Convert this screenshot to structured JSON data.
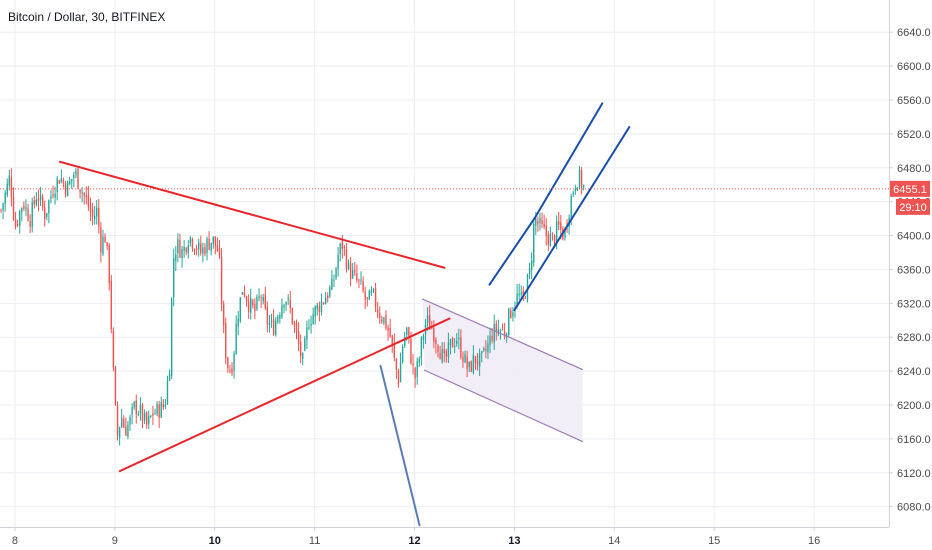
{
  "chart_data": {
    "type": "candlestick",
    "title": "Bitcoin / Dollar, 30, BITFINEX",
    "xlim": [
      7.85,
      16.75
    ],
    "ylim": [
      6056,
      6678
    ],
    "x_ticks": [
      {
        "value": 8,
        "label": "8",
        "bold": false
      },
      {
        "value": 9,
        "label": "9",
        "bold": false
      },
      {
        "value": 10,
        "label": "10",
        "bold": true
      },
      {
        "value": 11,
        "label": "11",
        "bold": false
      },
      {
        "value": 12,
        "label": "12",
        "bold": true
      },
      {
        "value": 13,
        "label": "13",
        "bold": true
      },
      {
        "value": 14,
        "label": "14",
        "bold": false
      },
      {
        "value": 15,
        "label": "15",
        "bold": false
      },
      {
        "value": 16,
        "label": "16",
        "bold": false
      }
    ],
    "y_ticks": [
      {
        "value": 6080,
        "label": "6080.0"
      },
      {
        "value": 6120,
        "label": "6120.0"
      },
      {
        "value": 6160,
        "label": "6160.0"
      },
      {
        "value": 6200,
        "label": "6200.0"
      },
      {
        "value": 6240,
        "label": "6240.0"
      },
      {
        "value": 6280,
        "label": "6280.0"
      },
      {
        "value": 6320,
        "label": "6320.0"
      },
      {
        "value": 6360,
        "label": "6360.0"
      },
      {
        "value": 6400,
        "label": "6400.0"
      },
      {
        "value": 6440,
        "label": "6440.0"
      },
      {
        "value": 6480,
        "label": "6480.0"
      },
      {
        "value": 6520,
        "label": "6520.0"
      },
      {
        "value": 6560,
        "label": "6560.0"
      },
      {
        "value": 6600,
        "label": "6600.0"
      },
      {
        "value": 6640,
        "label": "6640.0"
      }
    ],
    "grid": true,
    "colors": {
      "up": "#26a69a",
      "down": "#ef5350",
      "grid": "#eceef2",
      "axis": "#cfd2d6",
      "price_label_bg": "#ef5350",
      "price_line": "#ef5350",
      "triangle": "#e8252b",
      "channel": "#1a4fa8",
      "falling_channel": "#9c7cb5",
      "falling_channel_fill": "#f0ebf6",
      "steep_line": "#5a7bb5"
    },
    "last_price": 6455.1,
    "last_price_label": "6455.1",
    "countdown_label": "29:10",
    "price_path": [
      [
        7.86,
        6430
      ],
      [
        7.95,
        6470
      ],
      [
        8.0,
        6410
      ],
      [
        8.08,
        6440
      ],
      [
        8.15,
        6420
      ],
      [
        8.22,
        6450
      ],
      [
        8.3,
        6425
      ],
      [
        8.38,
        6455
      ],
      [
        8.45,
        6470
      ],
      [
        8.52,
        6455
      ],
      [
        8.6,
        6475
      ],
      [
        8.66,
        6455
      ],
      [
        8.72,
        6440
      ],
      [
        8.78,
        6420
      ],
      [
        8.82,
        6430
      ],
      [
        8.86,
        6390
      ],
      [
        8.9,
        6400
      ],
      [
        8.94,
        6360
      ],
      [
        8.98,
        6250
      ],
      [
        9.0,
        6200
      ],
      [
        9.03,
        6160
      ],
      [
        9.06,
        6190
      ],
      [
        9.1,
        6170
      ],
      [
        9.15,
        6180
      ],
      [
        9.2,
        6200
      ],
      [
        9.26,
        6190
      ],
      [
        9.32,
        6175
      ],
      [
        9.38,
        6190
      ],
      [
        9.45,
        6195
      ],
      [
        9.5,
        6200
      ],
      [
        9.55,
        6250
      ],
      [
        9.58,
        6370
      ],
      [
        9.62,
        6390
      ],
      [
        9.68,
        6380
      ],
      [
        9.74,
        6400
      ],
      [
        9.8,
        6390
      ],
      [
        9.86,
        6380
      ],
      [
        9.92,
        6390
      ],
      [
        9.98,
        6395
      ],
      [
        10.04,
        6380
      ],
      [
        10.08,
        6300
      ],
      [
        10.1,
        6270
      ],
      [
        10.14,
        6240
      ],
      [
        10.18,
        6250
      ],
      [
        10.22,
        6300
      ],
      [
        10.28,
        6340
      ],
      [
        10.34,
        6320
      ],
      [
        10.4,
        6310
      ],
      [
        10.46,
        6330
      ],
      [
        10.52,
        6300
      ],
      [
        10.58,
        6290
      ],
      [
        10.64,
        6310
      ],
      [
        10.7,
        6330
      ],
      [
        10.76,
        6310
      ],
      [
        10.82,
        6280
      ],
      [
        10.88,
        6250
      ],
      [
        10.94,
        6300
      ],
      [
        11.0,
        6310
      ],
      [
        11.06,
        6320
      ],
      [
        11.12,
        6330
      ],
      [
        11.18,
        6340
      ],
      [
        11.24,
        6380
      ],
      [
        11.28,
        6390
      ],
      [
        11.34,
        6360
      ],
      [
        11.4,
        6350
      ],
      [
        11.46,
        6340
      ],
      [
        11.52,
        6320
      ],
      [
        11.58,
        6330
      ],
      [
        11.64,
        6310
      ],
      [
        11.7,
        6300
      ],
      [
        11.76,
        6280
      ],
      [
        11.8,
        6250
      ],
      [
        11.84,
        6230
      ],
      [
        11.88,
        6270
      ],
      [
        11.92,
        6290
      ],
      [
        11.96,
        6260
      ],
      [
        12.0,
        6230
      ],
      [
        12.04,
        6250
      ],
      [
        12.08,
        6280
      ],
      [
        12.12,
        6300
      ],
      [
        12.18,
        6290
      ],
      [
        12.24,
        6270
      ],
      [
        12.3,
        6250
      ],
      [
        12.36,
        6270
      ],
      [
        12.42,
        6280
      ],
      [
        12.48,
        6260
      ],
      [
        12.54,
        6240
      ],
      [
        12.6,
        6255
      ],
      [
        12.66,
        6250
      ],
      [
        12.72,
        6265
      ],
      [
        12.78,
        6285
      ],
      [
        12.84,
        6290
      ],
      [
        12.9,
        6285
      ],
      [
        12.96,
        6310
      ],
      [
        13.0,
        6320
      ],
      [
        13.04,
        6330
      ],
      [
        13.08,
        6320
      ],
      [
        13.12,
        6340
      ],
      [
        13.16,
        6360
      ],
      [
        13.2,
        6420
      ],
      [
        13.26,
        6410
      ],
      [
        13.32,
        6400
      ],
      [
        13.38,
        6395
      ],
      [
        13.44,
        6410
      ],
      [
        13.5,
        6400
      ],
      [
        13.56,
        6440
      ],
      [
        13.6,
        6460
      ],
      [
        13.64,
        6470
      ],
      [
        13.68,
        6460
      ],
      [
        13.7,
        6455
      ]
    ],
    "drawings": {
      "triangle_upper": [
        [
          8.45,
          6487
        ],
        [
          12.3,
          6362
        ]
      ],
      "triangle_lower": [
        [
          9.05,
          6122
        ],
        [
          12.35,
          6302
        ]
      ],
      "rising_channel_upper": [
        [
          13.2,
          6420
        ],
        [
          13.88,
          6556
        ]
      ],
      "rising_channel_lower": [
        [
          13.0,
          6312
        ],
        [
          14.15,
          6528
        ]
      ],
      "rising_channel_left": [
        [
          12.75,
          6342
        ],
        [
          13.2,
          6420
        ]
      ],
      "falling_channel_upper": [
        [
          12.08,
          6325
        ],
        [
          13.68,
          6242
        ]
      ],
      "falling_channel_lower": [
        [
          12.1,
          6241
        ],
        [
          13.68,
          6157
        ]
      ],
      "steep_line": [
        [
          11.66,
          6246
        ],
        [
          12.05,
          6058
        ]
      ]
    }
  }
}
